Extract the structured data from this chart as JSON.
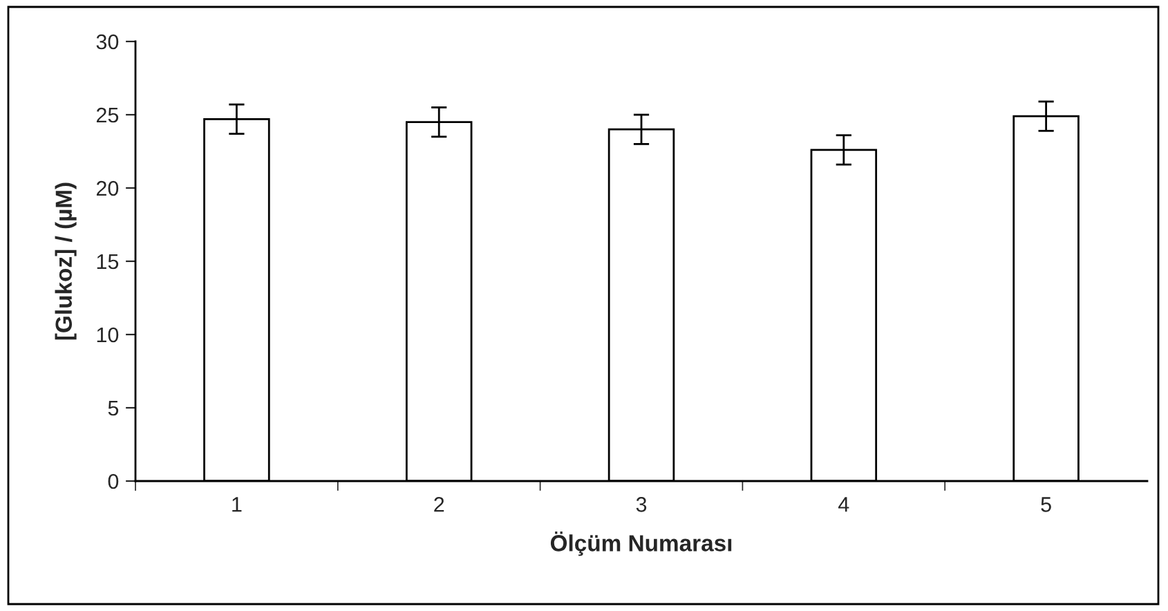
{
  "chart_data": {
    "type": "bar",
    "xlabel": "Ölçüm Numarası",
    "ylabel": "[Glukoz] / (µM)",
    "categories": [
      "1",
      "2",
      "3",
      "4",
      "5"
    ],
    "values": [
      24.7,
      24.5,
      24.0,
      22.6,
      24.9
    ],
    "errors": [
      1.0,
      1.0,
      1.0,
      1.0,
      1.0
    ],
    "color": "#ffffff",
    "ylim": [
      0,
      30
    ],
    "yticks": [
      0,
      5,
      10,
      15,
      20,
      25,
      30
    ],
    "grid": false
  }
}
